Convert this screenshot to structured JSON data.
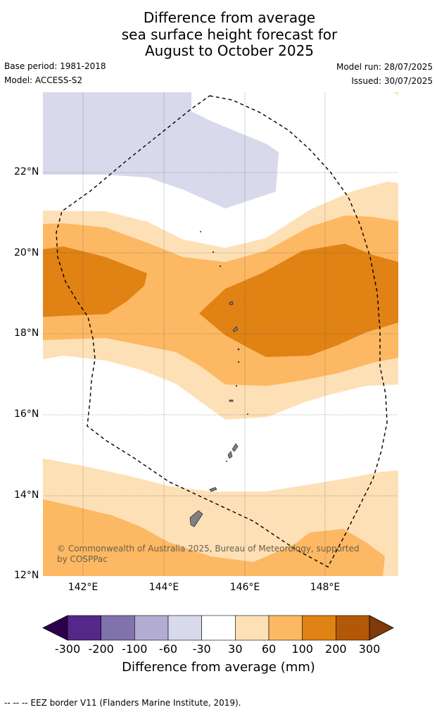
{
  "title_lines": [
    "Difference from average",
    "sea surface height forecast for",
    "August to October 2025"
  ],
  "meta": {
    "base_period": "Base period: 1981-2018",
    "model": "Model: ACCESS-S2",
    "model_run": "Model run: 28/07/2025",
    "issued": "Issued: 30/07/2025"
  },
  "map": {
    "lat_labels": [
      "22°N",
      "20°N",
      "18°N",
      "16°N",
      "14°N",
      "12°N"
    ],
    "lon_labels": [
      "142°E",
      "144°E",
      "146°E",
      "148°E"
    ],
    "lon_range": [
      141,
      149.8
    ],
    "lat_range": [
      12,
      24
    ]
  },
  "copyright": "© Commonwealth of Australia 2025, Bureau of Meteorology, supported by COSPPac",
  "colorbar": {
    "ticks": [
      "-300",
      "-200",
      "-100",
      "-60",
      "-30",
      "30",
      "60",
      "100",
      "200",
      "300"
    ],
    "colors": [
      "#2d004b",
      "#542788",
      "#8073ac",
      "#b2abd2",
      "#d8daeb",
      "#ffffff",
      "#fee0b6",
      "#fdb863",
      "#e08214",
      "#b35806",
      "#7f3b08"
    ],
    "label": "Difference from average (mm)"
  },
  "footnote": "--  --  -- EEZ border V11 (Flanders Marine Institute, 2019)."
}
